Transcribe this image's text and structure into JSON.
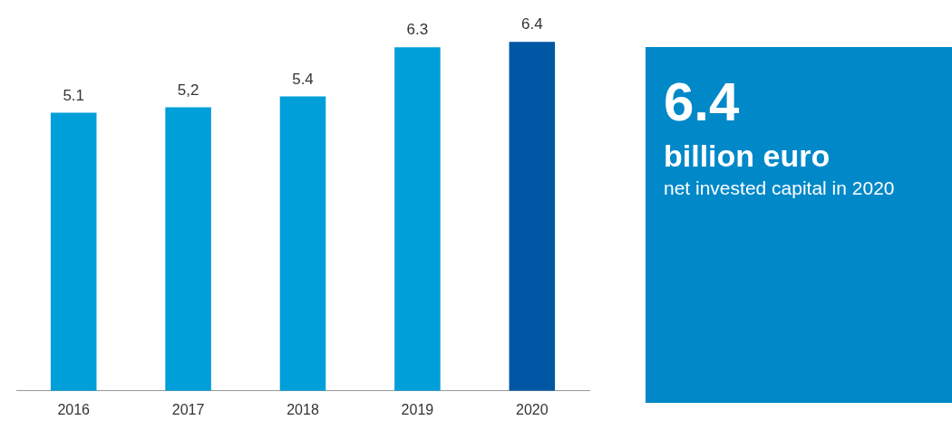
{
  "chart_data": [
    {
      "type": "bar",
      "categories": [
        "2016",
        "2017",
        "2018",
        "2019",
        "2020"
      ],
      "values": [
        5.1,
        5.2,
        5.4,
        6.3,
        6.4
      ],
      "colors": [
        "#009fd9",
        "#009fd9",
        "#009fd9",
        "#009fd9",
        "#0057a4"
      ],
      "value_labels": [
        "5.1",
        "5,2",
        "5.4",
        "6.3",
        "6.4"
      ],
      "tick_labels": "x",
      "grid": false,
      "legend": false
    },
    {
      "type": "other",
      "title": "6.4",
      "subtitle": "billion euro",
      "annotations": [
        "net invested capital in 2020"
      ]
    }
  ]
}
